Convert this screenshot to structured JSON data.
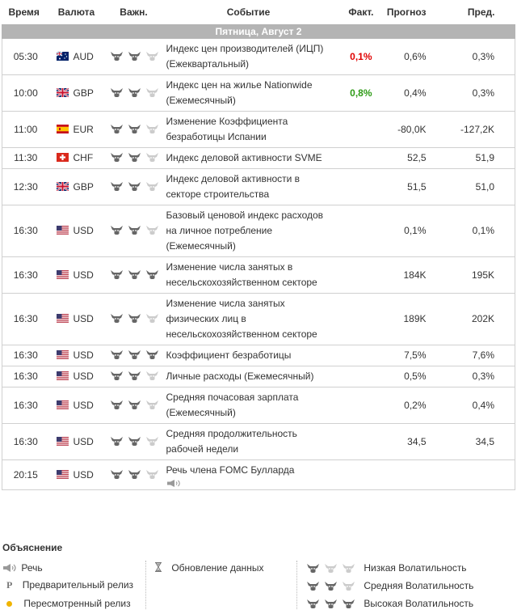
{
  "header": {
    "time": "Время",
    "currency": "Валюта",
    "importance": "Важн.",
    "event": "Событие",
    "actual": "Факт.",
    "forecast": "Прогноз",
    "previous": "Пред."
  },
  "day_label": "Пятница, Август 2",
  "events": [
    {
      "time": "05:30",
      "flag": "au-flag-icon",
      "currency": "AUD",
      "importance": 2,
      "event": "Индекс цен производителей (ИЦП) (Ежеквартальный)",
      "actual": "0,1%",
      "actual_color": "red",
      "forecast": "0,6%",
      "previous": "0,3%"
    },
    {
      "time": "10:00",
      "flag": "gb-flag-icon",
      "currency": "GBP",
      "importance": 2,
      "event": "Индекс цен на жилье Nationwide (Ежемесячный)",
      "actual": "0,8%",
      "actual_color": "green",
      "forecast": "0,4%",
      "previous": "0,3%"
    },
    {
      "time": "11:00",
      "flag": "es-flag-icon",
      "currency": "EUR",
      "importance": 2,
      "event": "Изменение Коэффициента безработицы Испании",
      "actual": "",
      "actual_color": "",
      "forecast": "-80,0K",
      "previous": "-127,2K"
    },
    {
      "time": "11:30",
      "flag": "ch-flag-icon",
      "currency": "CHF",
      "importance": 2,
      "event": "Индекс деловой активности SVME",
      "actual": "",
      "actual_color": "",
      "forecast": "52,5",
      "previous": "51,9"
    },
    {
      "time": "12:30",
      "flag": "gb-flag-icon",
      "currency": "GBP",
      "importance": 2,
      "event": "Индекс деловой активности в секторе строительства",
      "actual": "",
      "actual_color": "",
      "forecast": "51,5",
      "previous": "51,0"
    },
    {
      "time": "16:30",
      "flag": "us-flag-icon",
      "currency": "USD",
      "importance": 2,
      "event": "Базовый ценовой индекс расходов на личное потребление (Ежемесячный)",
      "actual": "",
      "actual_color": "",
      "forecast": "0,1%",
      "previous": "0,1%"
    },
    {
      "time": "16:30",
      "flag": "us-flag-icon",
      "currency": "USD",
      "importance": 3,
      "event": "Изменение числа занятых в несельскохозяйственном секторе",
      "actual": "",
      "actual_color": "",
      "forecast": "184K",
      "previous": "195K"
    },
    {
      "time": "16:30",
      "flag": "us-flag-icon",
      "currency": "USD",
      "importance": 2,
      "event": "Изменение числа занятых физических лиц в несельскохозяйственном секторе",
      "actual": "",
      "actual_color": "",
      "forecast": "189K",
      "previous": "202K"
    },
    {
      "time": "16:30",
      "flag": "us-flag-icon",
      "currency": "USD",
      "importance": 3,
      "event": "Коэффициент безработицы",
      "actual": "",
      "actual_color": "",
      "forecast": "7,5%",
      "previous": "7,6%"
    },
    {
      "time": "16:30",
      "flag": "us-flag-icon",
      "currency": "USD",
      "importance": 2,
      "event": "Личные расходы (Ежемесячный)",
      "actual": "",
      "actual_color": "",
      "forecast": "0,5%",
      "previous": "0,3%"
    },
    {
      "time": "16:30",
      "flag": "us-flag-icon",
      "currency": "USD",
      "importance": 2,
      "event": "Средняя почасовая зарплата (Ежемесячный)",
      "actual": "",
      "actual_color": "",
      "forecast": "0,2%",
      "previous": "0,4%"
    },
    {
      "time": "16:30",
      "flag": "us-flag-icon",
      "currency": "USD",
      "importance": 2,
      "event": "Средняя продолжительность рабочей недели",
      "actual": "",
      "actual_color": "",
      "forecast": "34,5",
      "previous": "34,5"
    },
    {
      "time": "20:15",
      "flag": "us-flag-icon",
      "currency": "USD",
      "importance": 2,
      "event": "Речь члена FOMC Булларда",
      "speech": true,
      "actual": "",
      "actual_color": "",
      "forecast": "",
      "previous": ""
    }
  ],
  "legend": {
    "title": "Объяснение",
    "speech": "Речь",
    "preliminary": "Предварительный релиз",
    "revised": "Пересмотренный релиз",
    "data_update": "Обновление данных",
    "low_vol": "Низкая Волатильность",
    "mid_vol": "Средняя Волатильность",
    "high_vol": "Высокая Волатильность",
    "bull_color_dark": "#666666",
    "bull_color_light": "#cccccc"
  }
}
